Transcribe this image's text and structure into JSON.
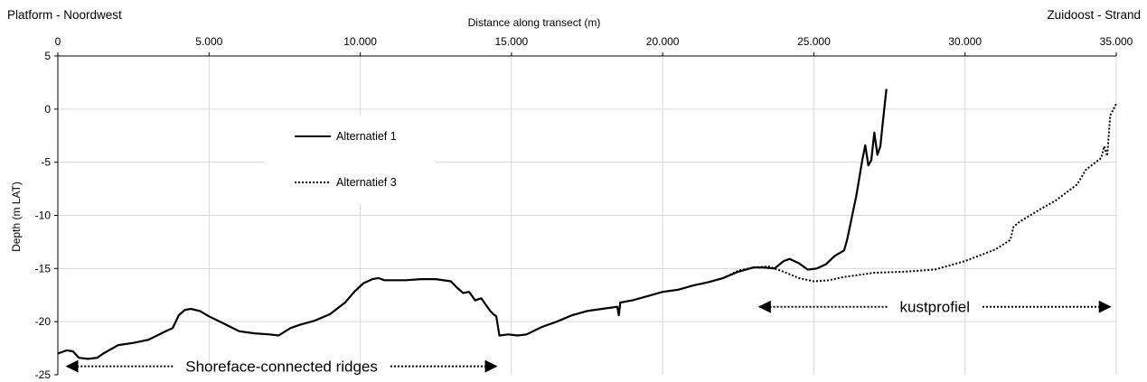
{
  "chart_data": {
    "type": "line",
    "title": "",
    "corner_left": "Platform - Noordwest",
    "corner_right": "Zuidoost - Strand",
    "xlabel": "Distance along transect (m)",
    "ylabel": "Depth (m LAT)",
    "xlim": [
      0,
      35000
    ],
    "ylim": [
      -25,
      5
    ],
    "x_ticks": [
      0,
      5000,
      10000,
      15000,
      20000,
      25000,
      30000,
      35000
    ],
    "x_tick_labels": [
      "0",
      "5.000",
      "10.000",
      "15.000",
      "20.000",
      "25.000",
      "30.000",
      "35.000"
    ],
    "y_ticks": [
      5,
      0,
      -5,
      -10,
      -15,
      -20,
      -25
    ],
    "y_tick_labels": [
      "5",
      "0",
      "-5",
      "-10",
      "-15",
      "-20",
      "-25"
    ],
    "x_axis_position": "top",
    "grid": true,
    "legend_position": "upper-left",
    "series": [
      {
        "name": "Alternatief 1",
        "style": "solid",
        "points": [
          [
            0,
            -23.0
          ],
          [
            300,
            -22.7
          ],
          [
            500,
            -22.8
          ],
          [
            700,
            -23.4
          ],
          [
            1000,
            -23.5
          ],
          [
            1300,
            -23.4
          ],
          [
            1500,
            -23.0
          ],
          [
            2000,
            -22.2
          ],
          [
            2500,
            -22.0
          ],
          [
            3000,
            -21.7
          ],
          [
            3500,
            -21.0
          ],
          [
            3800,
            -20.6
          ],
          [
            4000,
            -19.4
          ],
          [
            4200,
            -18.9
          ],
          [
            4400,
            -18.8
          ],
          [
            4700,
            -19.0
          ],
          [
            5000,
            -19.5
          ],
          [
            5500,
            -20.2
          ],
          [
            6000,
            -20.9
          ],
          [
            6500,
            -21.1
          ],
          [
            7000,
            -21.2
          ],
          [
            7300,
            -21.3
          ],
          [
            7700,
            -20.6
          ],
          [
            8000,
            -20.3
          ],
          [
            8500,
            -19.9
          ],
          [
            9000,
            -19.3
          ],
          [
            9500,
            -18.2
          ],
          [
            9800,
            -17.2
          ],
          [
            10100,
            -16.4
          ],
          [
            10400,
            -16.0
          ],
          [
            10600,
            -15.9
          ],
          [
            10800,
            -16.1
          ],
          [
            11500,
            -16.1
          ],
          [
            12000,
            -16.0
          ],
          [
            12500,
            -16.0
          ],
          [
            13000,
            -16.2
          ],
          [
            13200,
            -16.8
          ],
          [
            13400,
            -17.3
          ],
          [
            13600,
            -17.2
          ],
          [
            13800,
            -18.0
          ],
          [
            14000,
            -17.8
          ],
          [
            14300,
            -19.0
          ],
          [
            14400,
            -19.3
          ],
          [
            14500,
            -19.5
          ],
          [
            14600,
            -21.3
          ],
          [
            14900,
            -21.2
          ],
          [
            15200,
            -21.3
          ],
          [
            15500,
            -21.2
          ],
          [
            16000,
            -20.5
          ],
          [
            16500,
            -20.0
          ],
          [
            17000,
            -19.4
          ],
          [
            17500,
            -19.0
          ],
          [
            18000,
            -18.8
          ],
          [
            18500,
            -18.6
          ],
          [
            18550,
            -19.4
          ],
          [
            18600,
            -18.2
          ],
          [
            19000,
            -18.0
          ],
          [
            19500,
            -17.6
          ],
          [
            20000,
            -17.2
          ],
          [
            20500,
            -17.0
          ],
          [
            21000,
            -16.6
          ],
          [
            21500,
            -16.3
          ],
          [
            22000,
            -15.9
          ],
          [
            22500,
            -15.3
          ],
          [
            23000,
            -14.9
          ],
          [
            23300,
            -14.9
          ],
          [
            23700,
            -15.0
          ],
          [
            24000,
            -14.3
          ],
          [
            24200,
            -14.1
          ],
          [
            24500,
            -14.5
          ],
          [
            24800,
            -15.1
          ],
          [
            25100,
            -15.0
          ],
          [
            25400,
            -14.6
          ],
          [
            25700,
            -13.8
          ],
          [
            26000,
            -13.3
          ],
          [
            26100,
            -12.3
          ],
          [
            26400,
            -8.2
          ],
          [
            26600,
            -4.8
          ],
          [
            26700,
            -3.4
          ],
          [
            26800,
            -5.3
          ],
          [
            26900,
            -4.8
          ],
          [
            27000,
            -2.2
          ],
          [
            27100,
            -4.3
          ],
          [
            27200,
            -3.5
          ],
          [
            27300,
            -0.7
          ],
          [
            27400,
            1.9
          ]
        ]
      },
      {
        "name": "Alternatief 3",
        "style": "dotted",
        "points": [
          [
            22000,
            -15.9
          ],
          [
            22500,
            -15.2
          ],
          [
            23000,
            -14.9
          ],
          [
            23500,
            -14.8
          ],
          [
            24000,
            -15.3
          ],
          [
            24500,
            -15.9
          ],
          [
            25000,
            -16.2
          ],
          [
            25500,
            -16.1
          ],
          [
            26000,
            -15.8
          ],
          [
            27000,
            -15.4
          ],
          [
            28000,
            -15.3
          ],
          [
            29000,
            -15.1
          ],
          [
            30000,
            -14.3
          ],
          [
            31000,
            -13.2
          ],
          [
            31500,
            -12.3
          ],
          [
            31600,
            -11.1
          ],
          [
            31800,
            -10.6
          ],
          [
            32500,
            -9.4
          ],
          [
            33000,
            -8.6
          ],
          [
            33700,
            -7.1
          ],
          [
            34000,
            -5.7
          ],
          [
            34500,
            -4.6
          ],
          [
            34600,
            -3.5
          ],
          [
            34700,
            -4.4
          ],
          [
            34800,
            -0.6
          ],
          [
            35000,
            0.5
          ]
        ]
      }
    ],
    "annotations": [
      {
        "text": "Shoreface-connected ridges",
        "x_from": 300,
        "x_to": 14500,
        "y": -24.2
      },
      {
        "text": "kustprofiel",
        "x_from": 23200,
        "x_to": 34800,
        "y": -18.6
      }
    ]
  }
}
